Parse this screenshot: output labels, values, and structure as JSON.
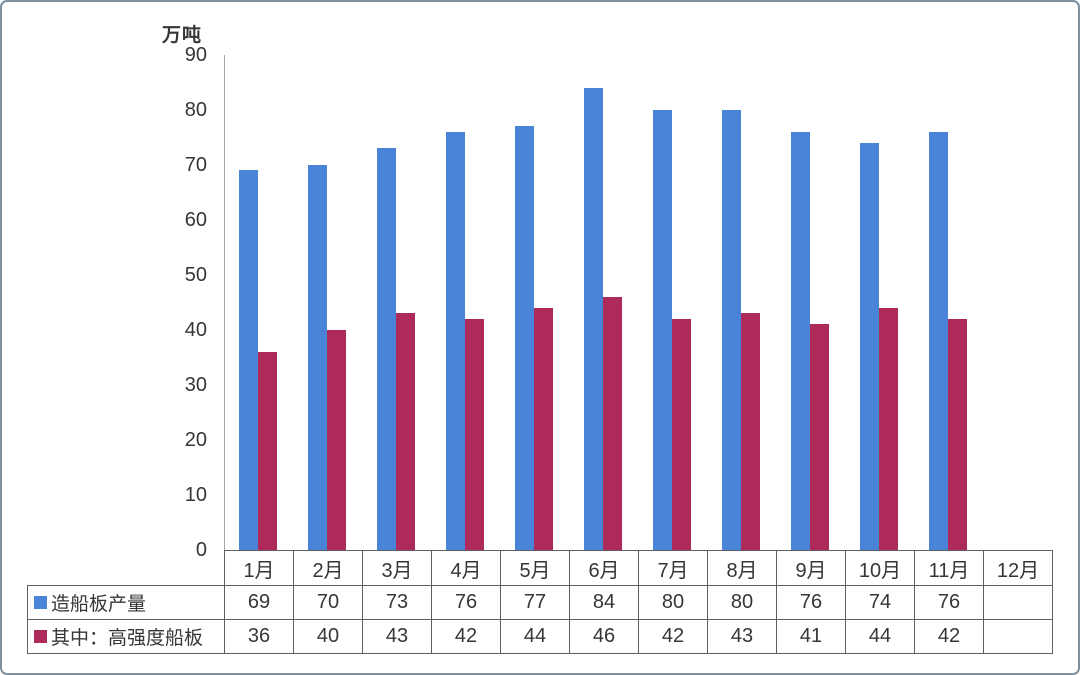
{
  "chart_data": {
    "type": "bar",
    "title": "",
    "unit_label": "万吨",
    "categories": [
      "1月",
      "2月",
      "3月",
      "4月",
      "5月",
      "6月",
      "7月",
      "8月",
      "9月",
      "10月",
      "11月",
      "12月"
    ],
    "series": [
      {
        "name": "造船板产量",
        "color": "#4a84d9",
        "values": [
          69,
          70,
          73,
          76,
          77,
          84,
          80,
          80,
          76,
          74,
          76,
          null
        ]
      },
      {
        "name": "其中：高强度船板",
        "color": "#ae2a5a",
        "values": [
          36,
          40,
          43,
          42,
          44,
          46,
          42,
          43,
          41,
          44,
          42,
          null
        ]
      }
    ],
    "ylim": [
      0,
      90
    ],
    "yticks": [
      0,
      10,
      20,
      30,
      40,
      50,
      60,
      70,
      80,
      90
    ],
    "grid": false,
    "legend_position": "table-left",
    "data_table": true
  },
  "colors": {
    "axis_line": "#a6a6a6",
    "table_border": "#5f5f5f",
    "text": "#363636",
    "frame_border": "#7d91a1",
    "background": "#ffffff"
  }
}
